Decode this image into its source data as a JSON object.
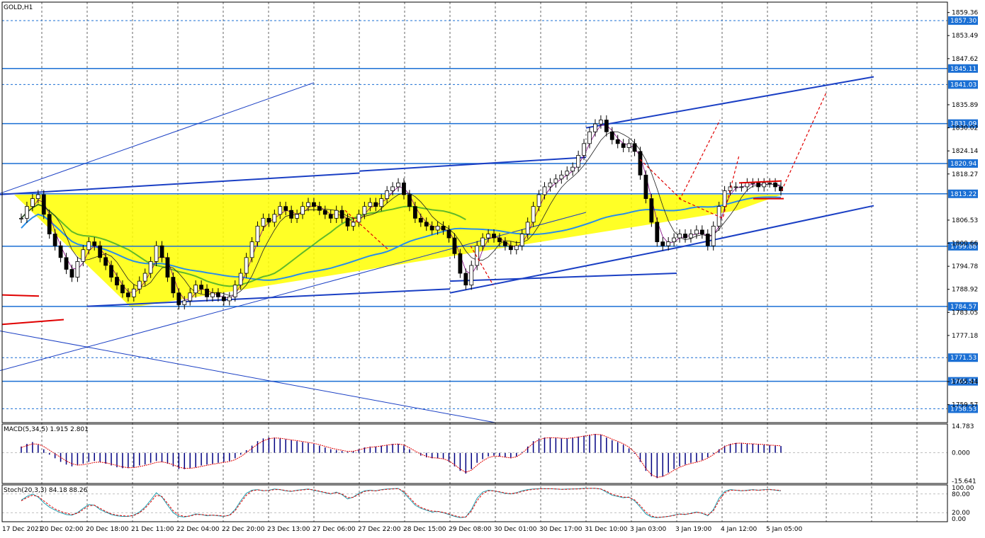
{
  "chart_data": {
    "type": "candlestick",
    "symbol_label": "GOLD,H1",
    "price_panel": {
      "ylim": [
        1755.0,
        1862.0
      ],
      "price_ticks": [
        "1859.36",
        "1853.49",
        "1847.62",
        "1835.89",
        "1830.02",
        "1824.14",
        "1818.27",
        "1806.53",
        "1800.66",
        "1794.78",
        "1788.92",
        "1783.05",
        "1777.18",
        "1765.44",
        "1759.57"
      ],
      "levels": [
        {
          "price": 1857.3,
          "label": "1857.30",
          "style": "dashed",
          "color": "#1a6fd4"
        },
        {
          "price": 1845.11,
          "label": "1845.11",
          "style": "solid",
          "color": "#1a6fd4"
        },
        {
          "price": 1841.03,
          "label": "1841.03",
          "style": "dashed",
          "color": "#1a6fd4"
        },
        {
          "price": 1831.09,
          "label": "1831.09",
          "style": "solid",
          "color": "#1a6fd4"
        },
        {
          "price": 1820.94,
          "label": "1820.94",
          "style": "solid",
          "color": "#1a6fd4"
        },
        {
          "price": 1813.22,
          "label": "1813.22",
          "style": "solid",
          "color": "#1a6fd4"
        },
        {
          "price": 1799.88,
          "label": "1799.88",
          "style": "solid",
          "color": "#1a6fd4"
        },
        {
          "price": 1784.57,
          "label": "1784.57",
          "style": "solid",
          "color": "#1a6fd4"
        },
        {
          "price": 1771.53,
          "label": "1771.53",
          "style": "dashed",
          "color": "#1a6fd4"
        },
        {
          "price": 1765.51,
          "label": "1765.51",
          "style": "solid",
          "color": "#1a6fd4"
        },
        {
          "price": 1758.53,
          "label": "1758.53",
          "style": "dashed",
          "color": "#1a6fd4"
        }
      ],
      "close_series": [
        1807,
        1810,
        1812,
        1813,
        1808,
        1803,
        1800,
        1797,
        1794,
        1792,
        1796,
        1799,
        1801,
        1800,
        1797,
        1795,
        1792,
        1790,
        1788,
        1787,
        1789,
        1791,
        1793,
        1796,
        1800,
        1797,
        1792,
        1788,
        1785,
        1786,
        1788,
        1790,
        1789,
        1787,
        1788,
        1787,
        1786,
        1787,
        1790,
        1793,
        1797,
        1801,
        1805,
        1807,
        1806,
        1808,
        1810,
        1809,
        1807,
        1808,
        1810,
        1811,
        1810,
        1809,
        1808,
        1807,
        1809,
        1807,
        1805,
        1806,
        1808,
        1810,
        1811,
        1810,
        1812,
        1814,
        1815,
        1816,
        1813,
        1810,
        1807,
        1806,
        1805,
        1804,
        1805,
        1804,
        1802,
        1798,
        1793,
        1790,
        1795,
        1800,
        1802,
        1803,
        1802,
        1801,
        1800,
        1799,
        1800,
        1803,
        1806,
        1810,
        1813,
        1815,
        1816,
        1817,
        1818,
        1819,
        1820,
        1823,
        1826,
        1829,
        1831,
        1832,
        1829,
        1827,
        1826,
        1825,
        1826,
        1824,
        1818,
        1812,
        1806,
        1801,
        1800,
        1801,
        1802,
        1803,
        1802,
        1803,
        1804,
        1803,
        1800,
        1805,
        1810,
        1814,
        1815,
        1815,
        1815,
        1816,
        1816,
        1815,
        1816,
        1816,
        1815,
        1814
      ],
      "trendlines": [
        {
          "p1": [
            "17 Dec 2021",
            1813.0
          ],
          "p2": [
            "27 Dec 22:00",
            1818.5
          ],
          "color": "#1a3fc4",
          "width": 2
        },
        {
          "p1": [
            "27 Dec 22:00",
            1819.0
          ],
          "p2": [
            "31 Dec 10:00",
            1822.5
          ],
          "color": "#1a3fc4",
          "width": 2
        },
        {
          "p1": [
            "31 Dec 10:00",
            1830.0
          ],
          "p2": [
            "5 Jan 05:00",
            1843.0
          ],
          "color": "#1a3fc4",
          "width": 2
        },
        {
          "p1": [
            "20 Dec 18:00",
            1784.6
          ],
          "p2": [
            "29 Dec 08:00",
            1789.0
          ],
          "color": "#1a3fc4",
          "width": 2
        },
        {
          "p1": [
            "29 Dec 08:00",
            1788.0
          ],
          "p2": [
            "3 Jan 19:00",
            1799.5
          ],
          "color": "#1a3fc4",
          "width": 2
        },
        {
          "p1": [
            "3 Jan 19:00",
            1799.5
          ],
          "p2": [
            "5 Jan 05:00",
            1810.2
          ],
          "color": "#1a3fc4",
          "width": 2
        },
        {
          "p1": [
            "29 Dec 08:00",
            1791.0
          ],
          "p2": [
            "3 Jan 19:00",
            1793.0
          ],
          "color": "#1a3fc4",
          "width": 2
        },
        {
          "p1": [
            "17 Dec 2021",
            1813.0
          ],
          "p2": [
            "27 Dec 06:00",
            1841.5
          ],
          "color": "#1a3fc4",
          "width": 1
        },
        {
          "p1": [
            "17 Dec 2021",
            1768.0
          ],
          "p2": [
            "31 Dec 10:00",
            1808.5
          ],
          "color": "#1a3fc4",
          "width": 1
        },
        {
          "p1": [
            "17 Dec 2021",
            1778.5
          ],
          "p2": [
            "30 Dec 01:00",
            1755.0
          ],
          "color": "#1a3fc4",
          "width": 1
        }
      ]
    },
    "macd": {
      "label": "MACD(5,34,5) 1.915 2.801",
      "ylim": [
        -17.0,
        16.0
      ],
      "ticks": [
        "14.783",
        "0.000",
        "-15.641"
      ],
      "histogram": [
        3.5,
        5.0,
        6.0,
        4.5,
        2.0,
        -1.0,
        -3.0,
        -5.0,
        -6.5,
        -7.5,
        -7.0,
        -6.0,
        -5.0,
        -4.5,
        -5.0,
        -6.0,
        -7.0,
        -8.0,
        -8.5,
        -8.5,
        -8.0,
        -7.0,
        -6.5,
        -5.5,
        -4.5,
        -5.0,
        -6.0,
        -7.5,
        -9.0,
        -9.0,
        -8.5,
        -8.0,
        -7.0,
        -6.5,
        -6.0,
        -5.5,
        -5.0,
        -4.5,
        -3.0,
        -1.0,
        1.5,
        4.0,
        6.5,
        8.0,
        8.5,
        8.5,
        8.0,
        7.5,
        7.0,
        6.5,
        6.0,
        5.5,
        5.0,
        4.0,
        3.0,
        2.0,
        1.5,
        1.0,
        0.5,
        1.0,
        2.0,
        3.0,
        3.5,
        3.5,
        4.0,
        4.5,
        5.0,
        5.0,
        4.0,
        2.0,
        0.0,
        -1.5,
        -2.5,
        -3.0,
        -3.0,
        -3.5,
        -5.0,
        -7.5,
        -10.0,
        -11.5,
        -9.0,
        -5.5,
        -3.5,
        -2.0,
        -1.5,
        -2.0,
        -2.5,
        -3.0,
        -2.0,
        0.5,
        3.5,
        6.5,
        8.0,
        8.5,
        8.5,
        8.5,
        8.0,
        8.0,
        8.5,
        9.0,
        9.5,
        10.0,
        10.5,
        10.0,
        8.5,
        7.0,
        6.0,
        4.5,
        2.5,
        -0.5,
        -5.0,
        -10.0,
        -13.0,
        -14.0,
        -13.0,
        -11.0,
        -9.0,
        -7.5,
        -6.5,
        -5.5,
        -5.0,
        -4.0,
        -2.5,
        -0.5,
        2.0,
        4.0,
        5.0,
        5.5,
        5.5,
        5.0,
        5.0,
        4.8,
        4.5,
        4.2,
        4.0,
        3.8
      ],
      "signal": [
        3.0,
        4.0,
        5.0,
        4.8,
        3.5,
        1.5,
        -0.5,
        -2.5,
        -4.5,
        -6.0,
        -6.8,
        -6.6,
        -6.0,
        -5.3,
        -5.1,
        -5.5,
        -6.2,
        -7.0,
        -7.8,
        -8.2,
        -8.2,
        -7.6,
        -7.0,
        -6.2,
        -5.3,
        -5.0,
        -5.6,
        -6.6,
        -7.9,
        -8.6,
        -8.6,
        -8.2,
        -7.5,
        -6.9,
        -6.3,
        -5.8,
        -5.3,
        -4.8,
        -3.8,
        -2.1,
        0.1,
        2.5,
        4.8,
        6.7,
        7.8,
        8.3,
        8.1,
        7.7,
        7.2,
        6.8,
        6.3,
        5.8,
        5.3,
        4.5,
        3.6,
        2.7,
        2.0,
        1.4,
        0.8,
        0.9,
        1.6,
        2.5,
        3.1,
        3.4,
        3.8,
        4.3,
        4.7,
        4.9,
        4.4,
        2.8,
        1.0,
        -0.7,
        -1.9,
        -2.7,
        -2.9,
        -3.3,
        -4.4,
        -6.6,
        -9.0,
        -10.8,
        -9.6,
        -6.9,
        -4.5,
        -2.7,
        -1.8,
        -1.9,
        -2.4,
        -2.8,
        -2.2,
        -0.2,
        2.6,
        5.4,
        7.3,
        8.2,
        8.4,
        8.4,
        8.1,
        8.0,
        8.4,
        8.8,
        9.3,
        9.8,
        10.3,
        10.1,
        9.0,
        7.6,
        6.4,
        5.0,
        3.2,
        0.4,
        -3.8,
        -8.7,
        -12.1,
        -13.6,
        -13.1,
        -11.6,
        -9.6,
        -8.0,
        -6.8,
        -5.9,
        -5.2,
        -4.3,
        -2.9,
        -1.0,
        1.4,
        3.5,
        4.7,
        5.3,
        5.4,
        5.1,
        5.0,
        4.8,
        4.6,
        4.3,
        4.1,
        3.9
      ]
    },
    "stochastic": {
      "label": "Stoch(20,3,3) 84.18 88.26",
      "ylim": [
        0,
        100
      ],
      "ticks": [
        "100.00",
        "80.00",
        "20.00",
        "0.00"
      ],
      "k": [
        60,
        72,
        80,
        70,
        52,
        38,
        28,
        20,
        14,
        12,
        20,
        34,
        46,
        44,
        30,
        22,
        14,
        10,
        8,
        8,
        12,
        22,
        38,
        60,
        84,
        70,
        44,
        20,
        8,
        6,
        10,
        16,
        14,
        10,
        12,
        10,
        8,
        12,
        30,
        58,
        82,
        92,
        94,
        90,
        92,
        96,
        94,
        90,
        88,
        92,
        94,
        96,
        92,
        88,
        84,
        80,
        86,
        78,
        64,
        70,
        82,
        90,
        92,
        90,
        94,
        96,
        97,
        98,
        84,
        64,
        44,
        34,
        28,
        22,
        24,
        20,
        14,
        8,
        4,
        6,
        30,
        66,
        86,
        92,
        90,
        86,
        82,
        80,
        84,
        90,
        94,
        96,
        97,
        97,
        97,
        96,
        95,
        96,
        96,
        97,
        98,
        98,
        98,
        96,
        86,
        76,
        72,
        68,
        70,
        58,
        38,
        16,
        6,
        4,
        6,
        8,
        12,
        16,
        14,
        18,
        22,
        18,
        10,
        30,
        66,
        88,
        94,
        92,
        90,
        92,
        94,
        92,
        94,
        95,
        92,
        90
      ],
      "d": [
        58,
        68,
        76,
        72,
        58,
        44,
        32,
        24,
        18,
        14,
        18,
        30,
        42,
        44,
        34,
        24,
        16,
        12,
        10,
        9,
        11,
        19,
        34,
        54,
        76,
        72,
        50,
        26,
        12,
        8,
        9,
        14,
        14,
        12,
        12,
        11,
        9,
        11,
        26,
        52,
        76,
        90,
        93,
        91,
        91,
        94,
        94,
        91,
        89,
        91,
        93,
        95,
        93,
        89,
        85,
        81,
        84,
        80,
        68,
        69,
        79,
        88,
        91,
        90,
        93,
        95,
        96,
        97,
        88,
        69,
        49,
        37,
        30,
        25,
        24,
        21,
        16,
        10,
        6,
        6,
        25,
        58,
        81,
        90,
        90,
        87,
        83,
        81,
        83,
        88,
        92,
        95,
        96,
        97,
        97,
        96,
        95,
        95,
        96,
        96,
        97,
        98,
        98,
        96,
        89,
        79,
        74,
        70,
        69,
        61,
        43,
        22,
        9,
        5,
        6,
        8,
        11,
        15,
        15,
        17,
        21,
        19,
        12,
        26,
        58,
        84,
        92,
        92,
        91,
        91,
        93,
        92,
        93,
        94,
        93,
        91
      ]
    },
    "time_labels": [
      "17 Dec 2021",
      "20 Dec 02:00",
      "20 Dec 18:00",
      "21 Dec 11:00",
      "22 Dec 04:00",
      "22 Dec 20:00",
      "23 Dec 13:00",
      "27 Dec 06:00",
      "27 Dec 22:00",
      "28 Dec 15:00",
      "29 Dec 08:00",
      "30 Dec 01:00",
      "30 Dec 17:00",
      "31 Dec 10:00",
      "3 Jan 03:00",
      "3 Jan 19:00",
      "4 Jan 12:00",
      "5 Jan 05:00"
    ],
    "colors": {
      "level": "#1a6fd4",
      "trend": "#1a3fc4",
      "triangle_fill": "#ffff00",
      "ma_blue": "#2a8ee8",
      "ma_green": "#3aa82a",
      "forecast": "#e00000",
      "marker": "#ff00ff",
      "macd_hist": "#000080",
      "signal": "#e00000",
      "stoch_main": "#20a0b0",
      "stoch_signal": "#e00000"
    }
  }
}
